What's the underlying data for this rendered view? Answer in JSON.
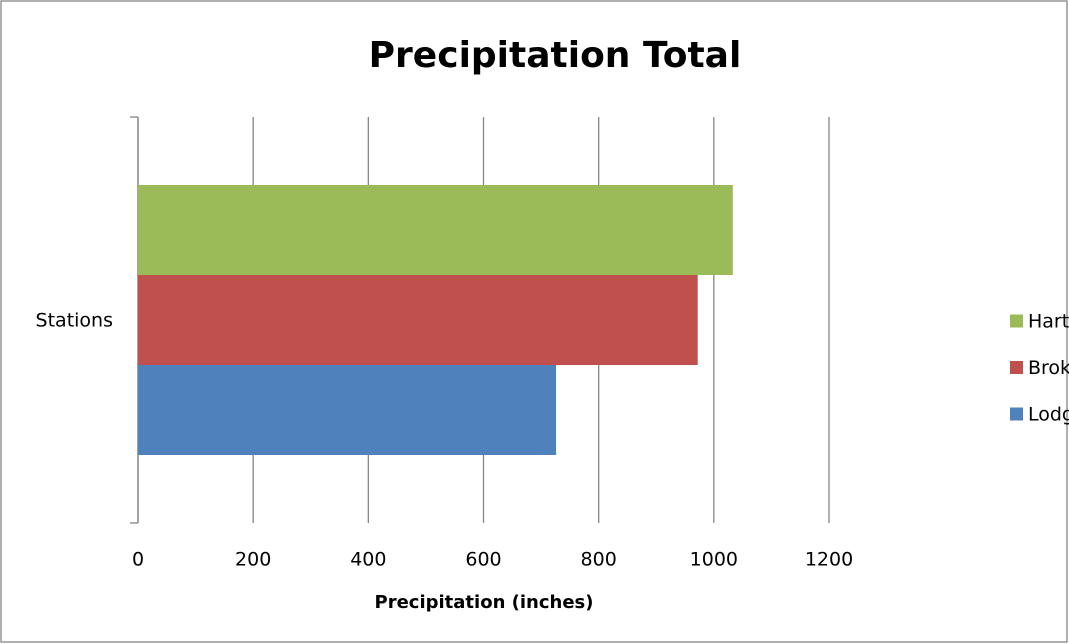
{
  "chart_data": {
    "type": "bar",
    "orientation": "horizontal",
    "title": "Precipitation Total",
    "x_label": "Precipitation (inches)",
    "categories": [
      "Stations"
    ],
    "series": [
      {
        "name": "Lodgepole",
        "color": "#4f81bd",
        "values": [
          726
        ]
      },
      {
        "name": "Broken Bow",
        "color": "#c0504d",
        "values": [
          972
        ]
      },
      {
        "name": "Hartington",
        "color": "#9bbb59",
        "values": [
          1033
        ]
      }
    ],
    "xlim": [
      0,
      1200
    ],
    "xticks": [
      0,
      200,
      400,
      600,
      800,
      1000,
      1200
    ],
    "grid": true,
    "legend": "right"
  }
}
